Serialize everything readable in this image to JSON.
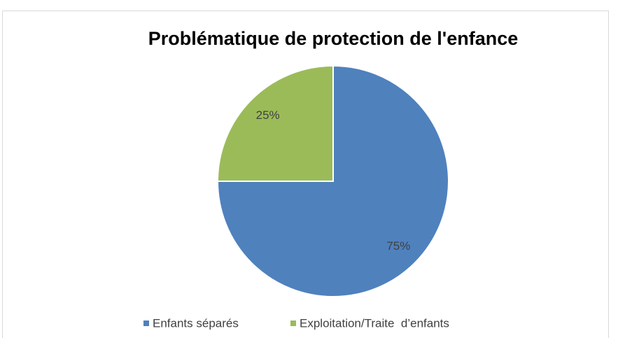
{
  "chart_data": {
    "type": "pie",
    "title": "Problématique de protection de l'enfance",
    "categories": [
      "Enfants séparés",
      "Exploitation/Traite  d’enfants"
    ],
    "values": [
      75,
      25
    ],
    "value_labels": [
      "75%",
      "25%"
    ],
    "colors": [
      "#4f81bd",
      "#9bbb59"
    ],
    "legend": "bottom"
  }
}
